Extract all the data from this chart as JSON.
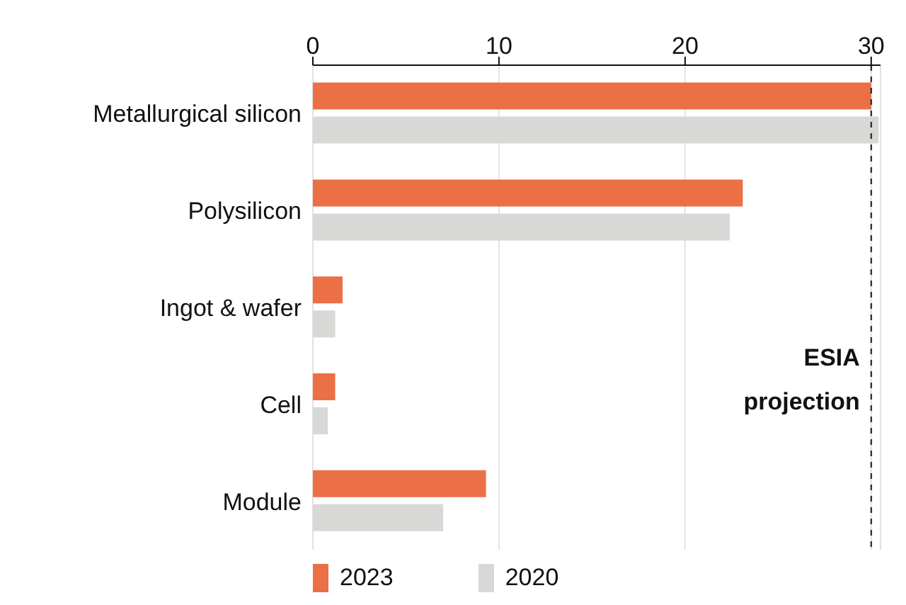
{
  "chart_data": {
    "type": "bar",
    "orientation": "horizontal",
    "categories": [
      "Metallurgical silicon",
      "Polysilicon",
      "Ingot & wafer",
      "Cell",
      "Module"
    ],
    "series": [
      {
        "name": "2023",
        "color": "#eb7046",
        "values": [
          30.0,
          23.1,
          1.6,
          1.2,
          9.3
        ]
      },
      {
        "name": "2020",
        "color": "#d8d8d6",
        "values": [
          30.4,
          22.4,
          1.2,
          0.8,
          7.0
        ]
      }
    ],
    "xlim": [
      0,
      30.5
    ],
    "xticks": [
      0,
      10,
      20,
      30
    ],
    "grid": "x",
    "legend": "bottom left",
    "ref_lines": [
      {
        "axis": "x",
        "value": 30,
        "label": "ESIA projection",
        "color": "#333333",
        "line_style": "dashed"
      }
    ]
  }
}
